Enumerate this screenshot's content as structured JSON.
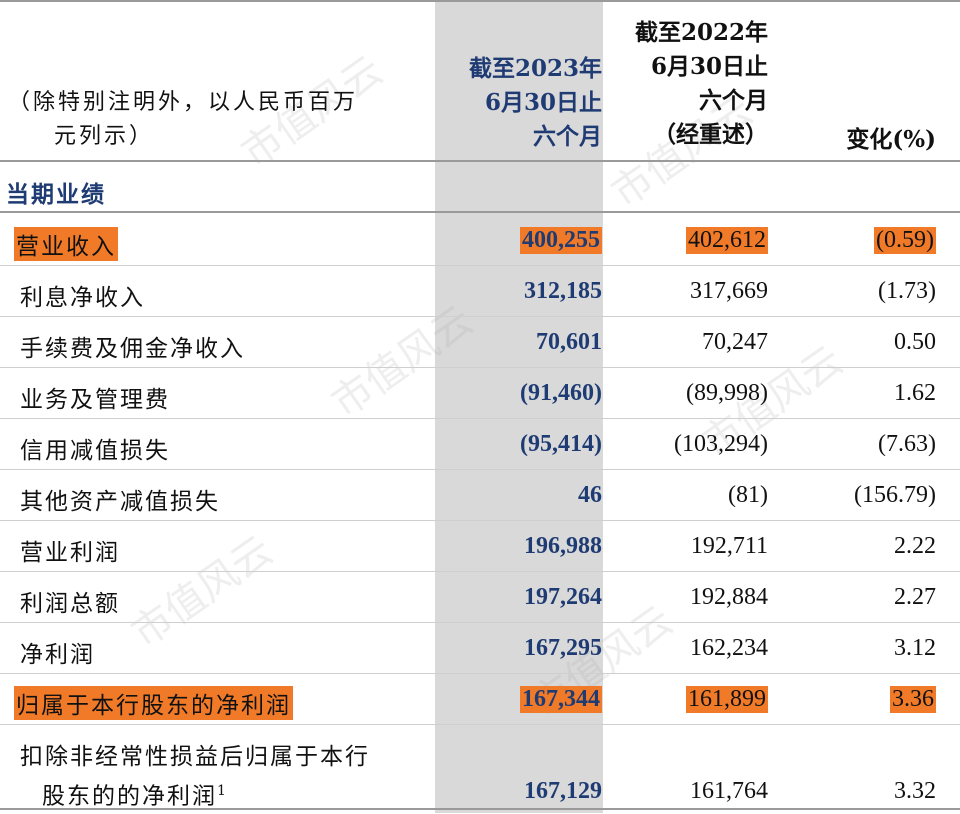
{
  "header": {
    "unit_line1": "（除特别注明外，以人民币百万",
    "unit_line2": "元列示）",
    "col1_line1": "截至2023年",
    "col1_line2": "6月30日止",
    "col1_line3": "六个月",
    "col2_line1": "截至2022年",
    "col2_line2": "6月30日止",
    "col2_line3": "六个月",
    "col2_line4": "（经重述）",
    "col3": "变化(%)"
  },
  "section_title": "当期业绩",
  "rows": [
    {
      "label": "营业收入",
      "v2023": "400,255",
      "v2022": "402,612",
      "change": "(0.59)",
      "highlight": true
    },
    {
      "label": "利息净收入",
      "v2023": "312,185",
      "v2022": "317,669",
      "change": "(1.73)",
      "highlight": false
    },
    {
      "label": "手续费及佣金净收入",
      "v2023": "70,601",
      "v2022": "70,247",
      "change": "0.50",
      "highlight": false
    },
    {
      "label": "业务及管理费",
      "v2023": "(91,460)",
      "v2022": "(89,998)",
      "change": "1.62",
      "highlight": false
    },
    {
      "label": "信用减值损失",
      "v2023": "(95,414)",
      "v2022": "(103,294)",
      "change": "(7.63)",
      "highlight": false
    },
    {
      "label": "其他资产减值损失",
      "v2023": "46",
      "v2022": "(81)",
      "change": "(156.79)",
      "highlight": false
    },
    {
      "label": "营业利润",
      "v2023": "196,988",
      "v2022": "192,711",
      "change": "2.22",
      "highlight": false
    },
    {
      "label": "利润总额",
      "v2023": "197,264",
      "v2022": "192,884",
      "change": "2.27",
      "highlight": false
    },
    {
      "label": "净利润",
      "v2023": "167,295",
      "v2022": "162,234",
      "change": "3.12",
      "highlight": false
    },
    {
      "label": "归属于本行股东的净利润",
      "v2023": "167,344",
      "v2022": "161,899",
      "change": "3.36",
      "highlight": true
    }
  ],
  "last_row": {
    "label_line1": "扣除非经常性损益后归属于本行",
    "label_line2": "股东的的净利润",
    "footnote": "1",
    "v2023": "167,129",
    "v2022": "161,764",
    "change": "3.32"
  },
  "watermark": "市值风云",
  "colors": {
    "highlight": "#f07a28",
    "accent_blue": "#1f3b73",
    "shade": "#d9d9d9"
  }
}
